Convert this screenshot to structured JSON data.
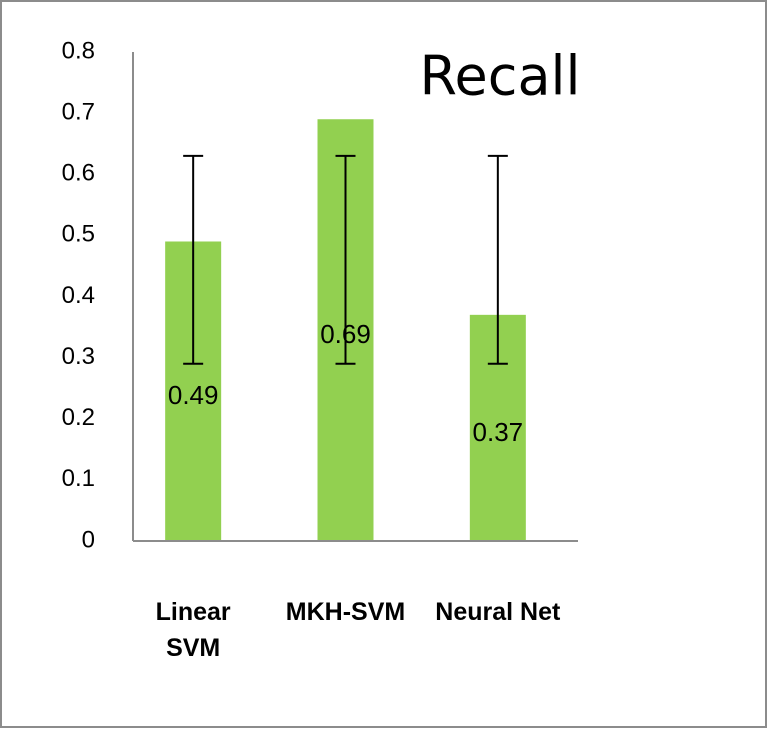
{
  "chart_data": {
    "type": "bar",
    "title": "Recall",
    "categories": [
      "Linear SVM",
      "MKH-SVM",
      "Neural Net"
    ],
    "values": [
      0.49,
      0.69,
      0.37
    ],
    "error_bars": [
      {
        "low": 0.29,
        "high": 0.63
      },
      {
        "low": 0.29,
        "high": 0.63
      },
      {
        "low": 0.29,
        "high": 0.63
      }
    ],
    "color": "#92d050",
    "ylim": [
      0,
      0.8
    ],
    "yticks": [
      0,
      0.1,
      0.2,
      0.3,
      0.4,
      0.5,
      0.6,
      0.7,
      0.8
    ],
    "grid": false
  }
}
